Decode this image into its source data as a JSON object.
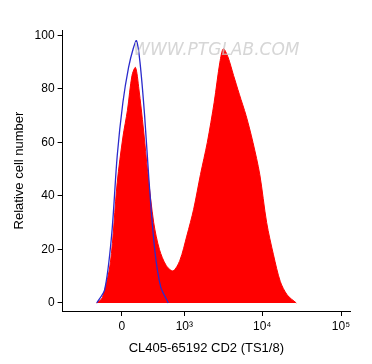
{
  "chart_data": {
    "type": "histogram",
    "x_label": "CL405-65192 CD2 (TS1/8)",
    "y_label": "Relative cell number",
    "annotations": [
      "WWW.PTGLAB.COM"
    ],
    "series": [
      {
        "type": "area",
        "color": "#ff0000",
        "x": [
          -264,
          -197,
          -112,
          -44,
          11,
          55,
          100,
          136,
          172,
          223,
          278,
          355,
          441,
          560,
          703,
          873,
          1078,
          1327,
          1629,
          1996,
          2445,
          2894,
          3201,
          3656,
          4323,
          5115,
          6237,
          7623,
          9306,
          11385,
          13893,
          16962,
          20757,
          27060
        ],
        "values": [
          0,
          2,
          15,
          45,
          62,
          72,
          85,
          88,
          80,
          65,
          48,
          30,
          20,
          14,
          12,
          16,
          25,
          35,
          48,
          60,
          75,
          90,
          95,
          92,
          85,
          78,
          70,
          60,
          48,
          30,
          18,
          8,
          3,
          0
        ]
      },
      {
        "type": "line",
        "color": "#2b2bcc",
        "x": [
          -264,
          -172,
          -100,
          -44,
          11,
          66,
          112,
          147,
          184,
          237,
          293,
          369,
          462,
          601
        ],
        "values": [
          0,
          5,
          25,
          55,
          75,
          88,
          95,
          98,
          90,
          70,
          45,
          20,
          6,
          0
        ]
      }
    ],
    "xlim": [
      -900,
      130000
    ],
    "xticks": [
      0,
      {
        "value": 1000,
        "label": "10³"
      },
      {
        "value": 10000,
        "label": "10⁴"
      },
      {
        "value": 100000,
        "label": "10⁵"
      }
    ],
    "ylim": [
      -3,
      102
    ],
    "yticks": [
      0,
      20,
      40,
      60,
      80,
      100
    ],
    "grid": false
  }
}
